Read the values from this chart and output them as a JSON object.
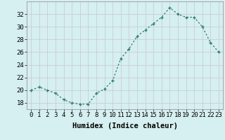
{
  "x": [
    0,
    1,
    2,
    3,
    4,
    5,
    6,
    7,
    8,
    9,
    10,
    11,
    12,
    13,
    14,
    15,
    16,
    17,
    18,
    19,
    20,
    21,
    22,
    23
  ],
  "y": [
    20.0,
    20.5,
    20.0,
    19.5,
    18.5,
    18.0,
    17.8,
    17.8,
    19.5,
    20.2,
    21.5,
    25.0,
    26.5,
    28.5,
    29.5,
    30.5,
    31.5,
    33.0,
    32.0,
    31.5,
    31.5,
    30.0,
    27.5,
    26.0
  ],
  "line_color": "#2e7d6e",
  "marker": "+",
  "bg_color": "#d6eff0",
  "grid_color": "#c8c8c8",
  "xlabel": "Humidex (Indice chaleur)",
  "ylim": [
    17,
    34
  ],
  "yticks": [
    18,
    20,
    22,
    24,
    26,
    28,
    30,
    32
  ],
  "xticks": [
    0,
    1,
    2,
    3,
    4,
    5,
    6,
    7,
    8,
    9,
    10,
    11,
    12,
    13,
    14,
    15,
    16,
    17,
    18,
    19,
    20,
    21,
    22,
    23
  ],
  "xlabel_fontsize": 7.5,
  "tick_fontsize": 6.5
}
